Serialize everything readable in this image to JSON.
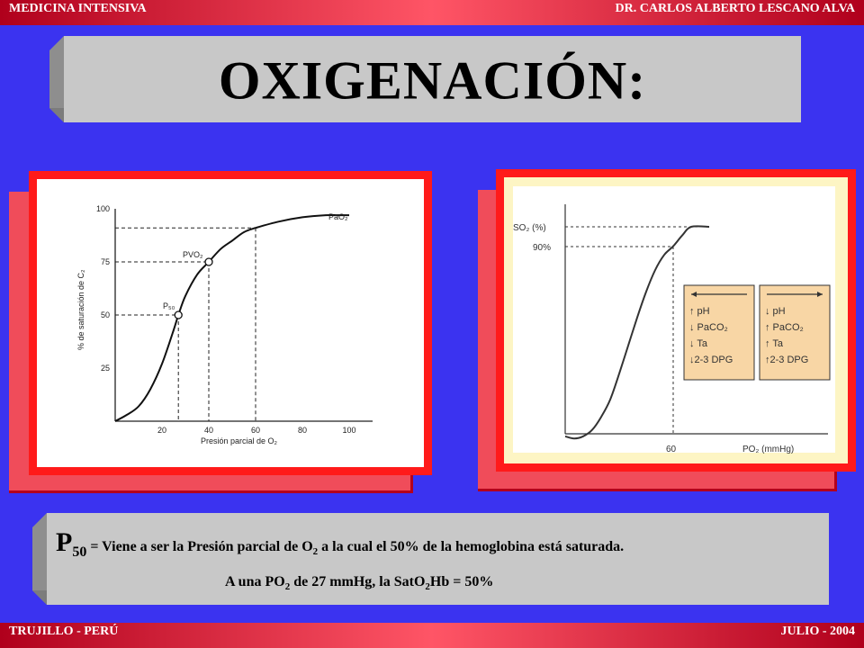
{
  "header": {
    "left": "MEDICINA INTENSIVA",
    "right": "DR. CARLOS ALBERTO LESCANO ALVA"
  },
  "footer": {
    "left": "TRUJILLO - PERÚ",
    "right": "JULIO - 2004"
  },
  "title": "OXIGENACIÓN:",
  "chart_left": {
    "ylabel": "% de saturación de C₂",
    "xlabel": "Presión parcial de O₂",
    "x_ticks": [
      "20",
      "40",
      "60",
      "80",
      "100"
    ],
    "y_ticks": [
      "100",
      "75",
      "50",
      "25"
    ],
    "labels": {
      "pao": "PaO₂",
      "pvo": "PVO₂",
      "p50": "P₅₀"
    }
  },
  "chart_right": {
    "y_tick_so2": "SO₂ (%)",
    "y_tick_90": "90%",
    "x_tick": "60",
    "xlabel": "PO₂ (mmHg)",
    "box_left": [
      "↑ pH",
      "↓ PaCO₂",
      "↓ Ta",
      "↓2-3 DPG"
    ],
    "box_right": [
      "↓ pH",
      "↑ PaCO₂",
      "↑ Ta",
      "↑2-3 DPG"
    ]
  },
  "note": {
    "p_letter": "P",
    "p_sub": "50",
    "eq": " = ",
    "l1a": "Viene a ser la Presión parcial de O",
    "l1sub": "2",
    "l1b": " a la cual el 50% de la hemoglobina está saturada.",
    "l2a": "A una PO",
    "l2sub": "2",
    "l2b": " de 27 mmHg, la SatO",
    "l2sub2": "2",
    "l2c": "Hb = 50%"
  },
  "chart_data": [
    {
      "type": "line",
      "xlabel": "Presión parcial de O₂",
      "ylabel": "% de saturación de C₂",
      "xlim": [
        0,
        110
      ],
      "ylim": [
        0,
        100
      ],
      "x_ticks": [
        20,
        40,
        60,
        80,
        100
      ],
      "y_ticks": [
        25,
        50,
        75,
        100
      ],
      "series": [
        {
          "name": "",
          "x": [
            0,
            5,
            10,
            15,
            20,
            25,
            27,
            30,
            35,
            40,
            45,
            50,
            55,
            60,
            70,
            80,
            90,
            95,
            100
          ],
          "y": [
            0,
            3,
            7,
            15,
            27,
            43,
            50,
            59,
            69,
            75,
            81,
            85,
            89,
            91,
            94,
            96,
            97,
            97,
            97
          ]
        }
      ],
      "points": [
        {
          "label": "P₅₀",
          "x": 27,
          "y": 50
        },
        {
          "label": "PVO₂",
          "x": 40,
          "y": 75
        },
        {
          "label": "PaO₂",
          "x": 60,
          "y": 91
        }
      ],
      "grid": false
    },
    {
      "type": "line",
      "xlabel": "PO₂ (mmHg)",
      "ylabel": "",
      "x_ticks": [
        60
      ],
      "y_tick_labels": [
        "SO₂ (%)",
        "90%"
      ],
      "series": [
        {
          "name": "",
          "x": [
            0,
            5,
            10,
            15,
            20,
            25,
            30,
            35,
            40,
            45,
            50,
            55,
            60,
            65,
            70,
            80
          ],
          "y": [
            3,
            2,
            3,
            6,
            12,
            20,
            32,
            45,
            58,
            70,
            80,
            87,
            91,
            96,
            100,
            100
          ]
        }
      ],
      "grid": false
    }
  ]
}
